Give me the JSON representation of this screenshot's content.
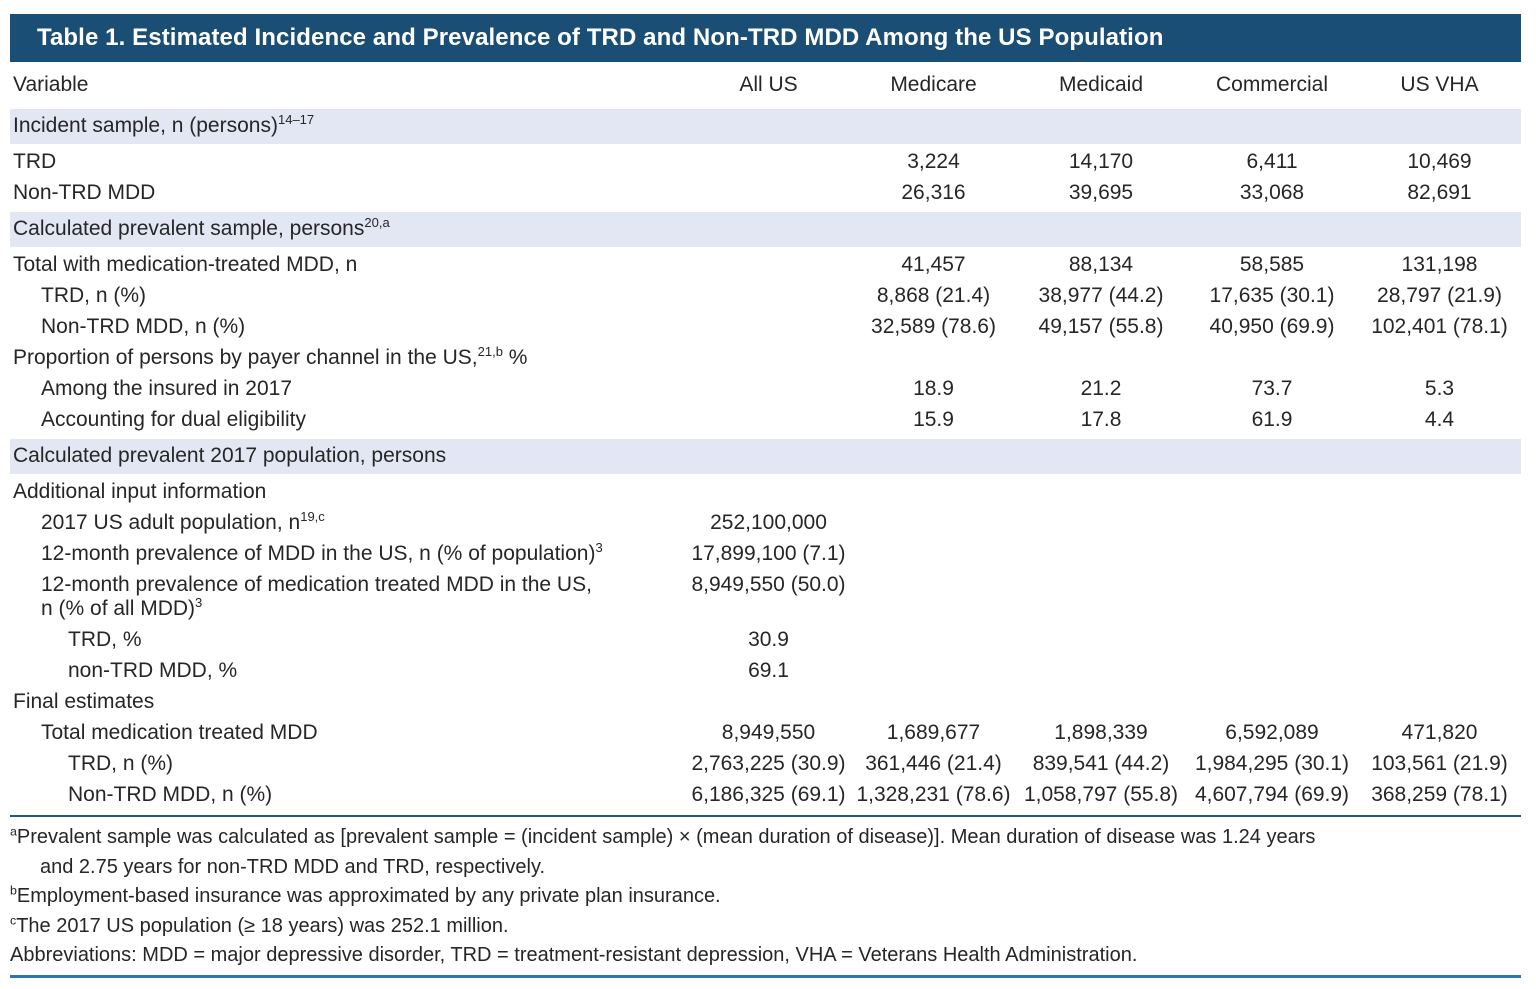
{
  "title": "Table 1. Estimated Incidence and Prevalence of TRD and Non-TRD MDD Among the US Population",
  "colors": {
    "title_bar_bg": "#1b4e74",
    "section_row_bg": "#e3e7f4",
    "mid_rule": "#20598a",
    "bottom_rule": "#2f74ad",
    "text": "#262626"
  },
  "table": {
    "columns": [
      "Variable",
      "All US",
      "Medicare",
      "Medicaid",
      "Commercial",
      "US VHA"
    ],
    "rows": [
      {
        "type": "section",
        "indent": 0,
        "pre": "Incident sample, n (persons)",
        "sup": "14–17",
        "values": [
          "",
          "",
          "",
          "",
          ""
        ]
      },
      {
        "type": "data",
        "indent": 0,
        "pre": "TRD",
        "values": [
          "",
          "3,224",
          "14,170",
          "6,411",
          "10,469"
        ]
      },
      {
        "type": "data",
        "indent": 0,
        "pre": "Non-TRD MDD",
        "values": [
          "",
          "26,316",
          "39,695",
          "33,068",
          "82,691"
        ]
      },
      {
        "type": "section",
        "indent": 0,
        "pre": "Calculated prevalent sample, persons",
        "sup": "20,a",
        "values": [
          "",
          "",
          "",
          "",
          ""
        ]
      },
      {
        "type": "data",
        "indent": 0,
        "pre": "Total with medication-treated MDD, n",
        "values": [
          "",
          "41,457",
          "88,134",
          "58,585",
          "131,198"
        ]
      },
      {
        "type": "data",
        "indent": 1,
        "pre": "TRD, n (%)",
        "values": [
          "",
          "8,868 (21.4)",
          "38,977 (44.2)",
          "17,635 (30.1)",
          "28,797 (21.9)"
        ]
      },
      {
        "type": "data",
        "indent": 1,
        "pre": "Non-TRD MDD, n (%)",
        "values": [
          "",
          "32,589 (78.6)",
          "49,157 (55.8)",
          "40,950 (69.9)",
          "102,401 (78.1)"
        ]
      },
      {
        "type": "subhead",
        "indent": 0,
        "pre": "Proportion of persons by payer channel in the US,",
        "sup": "21,b",
        "post": " %"
      },
      {
        "type": "data",
        "indent": 1,
        "pre": "Among the insured in 2017",
        "values": [
          "",
          "18.9",
          "21.2",
          "73.7",
          "5.3"
        ]
      },
      {
        "type": "data",
        "indent": 1,
        "pre": "Accounting for dual eligibility",
        "values": [
          "",
          "15.9",
          "17.8",
          "61.9",
          "4.4"
        ]
      },
      {
        "type": "section",
        "indent": 0,
        "pre": "Calculated prevalent 2017 population, persons"
      },
      {
        "type": "subhead",
        "indent": 0,
        "pre": "Additional input information"
      },
      {
        "type": "data",
        "indent": 1,
        "pre": "2017 US adult population, n",
        "sup": "19,c",
        "values": [
          "252,100,000",
          "",
          "",
          "",
          ""
        ]
      },
      {
        "type": "data",
        "indent": 1,
        "pre": "12-month prevalence of MDD in the US, n (% of population)",
        "sup": "3",
        "values": [
          "17,899,100 (7.1)",
          "",
          "",
          "",
          ""
        ]
      },
      {
        "type": "data",
        "indent": 1,
        "pre": "12-month prevalence of medication treated MDD in the US,",
        "line2": "n (% of all MDD)",
        "line2_sup": "3",
        "values": [
          "8,949,550 (50.0)",
          "",
          "",
          "",
          ""
        ]
      },
      {
        "type": "data",
        "indent": 2,
        "pre": "TRD, %",
        "values": [
          "30.9",
          "",
          "",
          "",
          ""
        ]
      },
      {
        "type": "data",
        "indent": 2,
        "pre": "non-TRD MDD, %",
        "values": [
          "69.1",
          "",
          "",
          "",
          ""
        ]
      },
      {
        "type": "subhead",
        "indent": 0,
        "pre": "Final estimates"
      },
      {
        "type": "data",
        "indent": 1,
        "pre": "Total medication treated MDD",
        "values": [
          "8,949,550",
          "1,689,677",
          "1,898,339",
          "6,592,089",
          "471,820"
        ]
      },
      {
        "type": "data",
        "indent": 2,
        "pre": "TRD, n (%)",
        "values": [
          "2,763,225 (30.9)",
          "361,446 (21.4)",
          "839,541 (44.2)",
          "1,984,295 (30.1)",
          "103,561 (21.9)"
        ]
      },
      {
        "type": "data",
        "indent": 2,
        "pre": "Non-TRD MDD, n (%)",
        "values": [
          "6,186,325 (69.1)",
          "1,328,231 (78.6)",
          "1,058,797 (55.8)",
          "4,607,794 (69.9)",
          "368,259 (78.1)"
        ]
      }
    ]
  },
  "footnotes": [
    {
      "sup": "a",
      "lines": [
        "Prevalent sample was calculated as [prevalent sample = (incident sample) × (mean duration of disease)]. Mean duration of disease was 1.24 years",
        "and 2.75 years for non-TRD MDD and TRD, respectively."
      ]
    },
    {
      "sup": "b",
      "lines": [
        "Employment-based insurance was approximated by any private plan insurance."
      ]
    },
    {
      "sup": "c",
      "lines": [
        "The 2017 US population (≥ 18 years) was 252.1 million."
      ]
    },
    {
      "sup": "",
      "lines": [
        "Abbreviations: MDD = major depressive disorder, TRD = treatment-resistant depression, VHA = Veterans Health Administration."
      ]
    }
  ]
}
